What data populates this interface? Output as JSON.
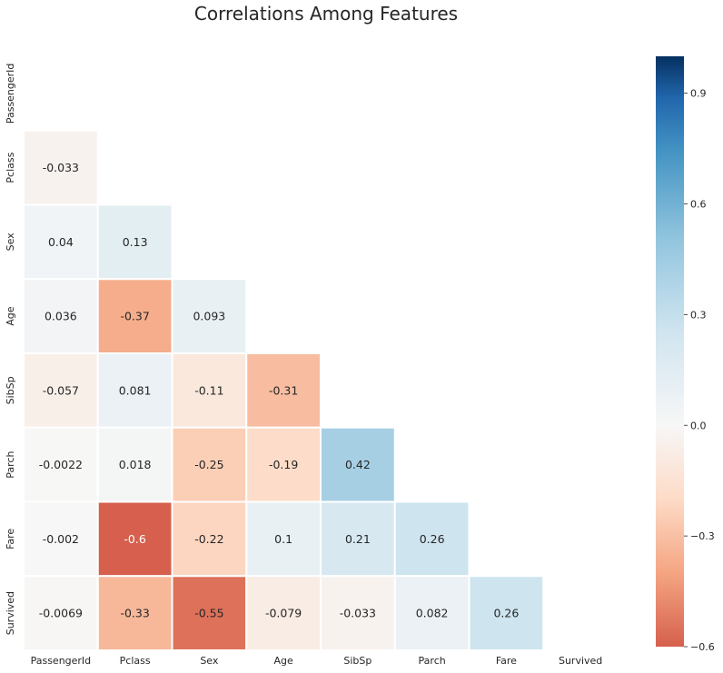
{
  "chart_data": {
    "type": "heatmap",
    "title": "Correlations Among Features",
    "variables": [
      "PassengerId",
      "Pclass",
      "Sex",
      "Age",
      "SibSp",
      "Parch",
      "Fare",
      "Survived"
    ],
    "mask": "upper-triangle-including-diagonal",
    "lower_triangle": [
      {
        "row": "Pclass",
        "values": [
          -0.033
        ]
      },
      {
        "row": "Sex",
        "values": [
          0.04,
          0.13
        ]
      },
      {
        "row": "Age",
        "values": [
          0.036,
          -0.37,
          0.093
        ]
      },
      {
        "row": "SibSp",
        "values": [
          -0.057,
          0.081,
          -0.11,
          -0.31
        ]
      },
      {
        "row": "Parch",
        "values": [
          -0.0022,
          0.018,
          -0.25,
          -0.19,
          0.42
        ]
      },
      {
        "row": "Fare",
        "values": [
          -0.002,
          -0.6,
          -0.22,
          0.1,
          0.21,
          0.26
        ]
      },
      {
        "row": "Survived",
        "values": [
          -0.0069,
          -0.33,
          -0.55,
          -0.079,
          -0.033,
          0.082,
          0.26
        ]
      }
    ],
    "colormap": "RdBu",
    "vmin": -0.6,
    "vmax": 1.0,
    "center": 0,
    "colorbar": {
      "ticks": [
        0.9,
        0.6,
        0.3,
        0.0,
        -0.3,
        -0.6
      ],
      "tick_labels": [
        "0.9",
        "0.6",
        "0.3",
        "0.0",
        "−0.3",
        "−0.6"
      ]
    }
  }
}
